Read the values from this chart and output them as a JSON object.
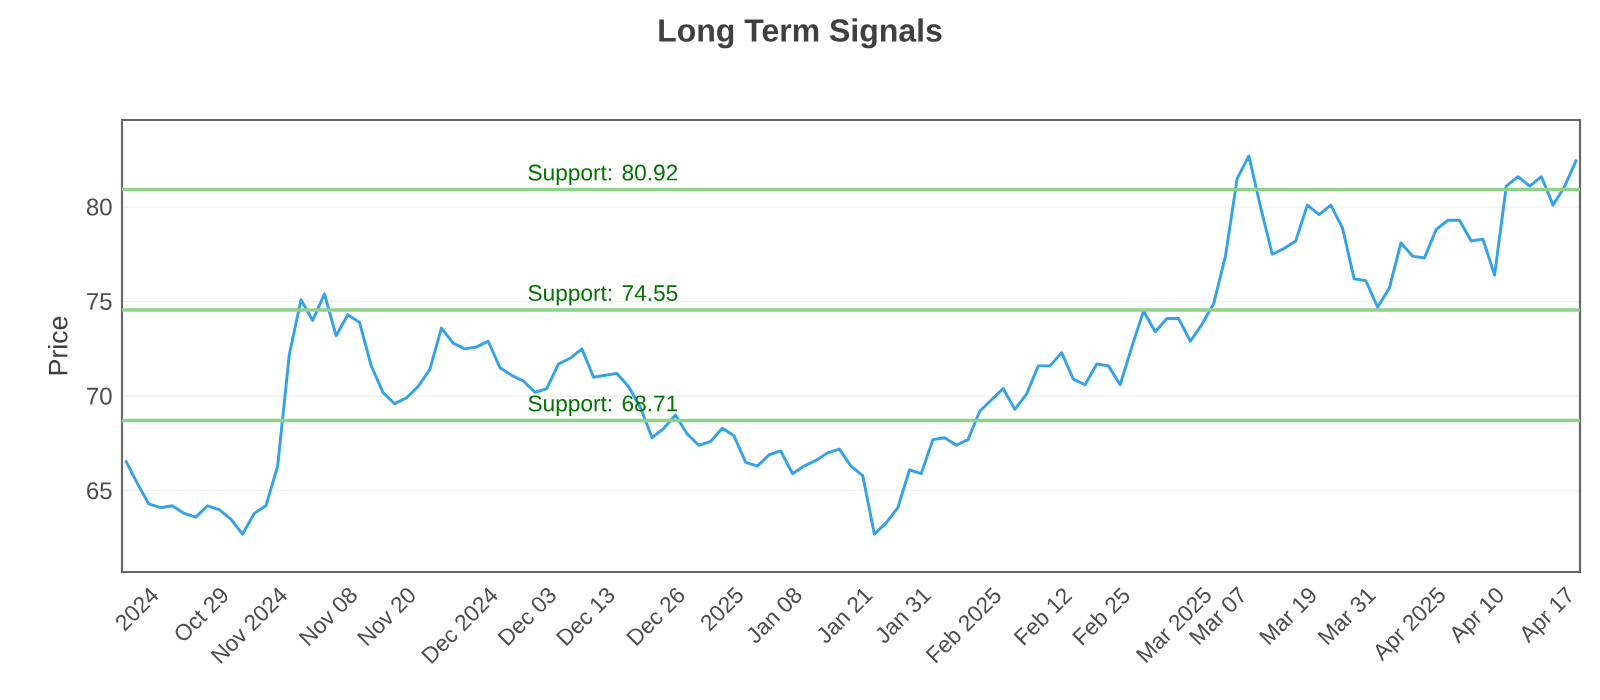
{
  "chart_data": {
    "type": "line",
    "title": "Long Term Signals",
    "ylabel": "Price",
    "categories": [
      null,
      null,
      "2024",
      null,
      null,
      null,
      null,
      null,
      "Oct 29",
      null,
      null,
      null,
      null,
      "Nov 2024",
      null,
      null,
      null,
      null,
      null,
      "Nov 08",
      null,
      null,
      null,
      null,
      "Nov 20",
      null,
      null,
      null,
      null,
      null,
      null,
      "Dec 2024",
      null,
      null,
      null,
      null,
      "Dec 03",
      null,
      null,
      null,
      null,
      "Dec 13",
      null,
      null,
      null,
      null,
      null,
      "Dec 26",
      null,
      null,
      null,
      null,
      "2025",
      null,
      null,
      null,
      null,
      "Jan 08",
      null,
      null,
      null,
      null,
      null,
      "Jan 21",
      null,
      null,
      null,
      null,
      "Jan 31",
      null,
      null,
      null,
      null,
      null,
      "Feb 2025",
      null,
      null,
      null,
      null,
      null,
      "Feb 12",
      null,
      null,
      null,
      null,
      "Feb 25",
      null,
      null,
      null,
      null,
      null,
      null,
      "Mar 2025",
      null,
      null,
      "Mar 07",
      null,
      null,
      null,
      null,
      null,
      "Mar 19",
      null,
      null,
      null,
      null,
      "Mar 31",
      null,
      null,
      null,
      null,
      null,
      "Apr 2025",
      null,
      null,
      null,
      null,
      "Apr 10",
      null,
      null,
      null,
      null,
      null,
      "Apr 17",
      null
    ],
    "series": [
      {
        "color": "#35a2e8",
        "values": [
          66.6,
          65.4,
          64.3,
          64.1,
          64.2,
          63.8,
          63.6,
          64.2,
          64.0,
          63.5,
          62.7,
          63.8,
          64.2,
          66.3,
          72.2,
          75.1,
          74.0,
          75.4,
          73.2,
          74.3,
          73.9,
          71.6,
          70.2,
          69.6,
          69.9,
          70.5,
          71.4,
          73.6,
          72.8,
          72.5,
          72.6,
          72.9,
          71.5,
          71.1,
          70.8,
          70.2,
          70.4,
          71.7,
          72.0,
          72.5,
          71.0,
          71.1,
          71.2,
          70.5,
          69.4,
          67.8,
          68.3,
          69.0,
          68.0,
          67.4,
          67.6,
          68.3,
          67.9,
          66.5,
          66.3,
          66.9,
          67.1,
          65.9,
          66.3,
          66.6,
          67.0,
          67.2,
          66.3,
          65.8,
          62.7,
          63.3,
          64.1,
          66.1,
          65.9,
          67.7,
          67.8,
          67.4,
          67.7,
          69.2,
          69.8,
          70.4,
          69.3,
          70.1,
          71.6,
          71.6,
          72.3,
          70.9,
          70.6,
          71.7,
          71.6,
          70.6,
          72.6,
          74.5,
          73.4,
          74.1,
          74.1,
          72.9,
          73.8,
          74.9,
          77.4,
          81.5,
          82.7,
          80.0,
          77.5,
          77.8,
          78.2,
          80.1,
          79.6,
          80.1,
          78.9,
          76.2,
          76.1,
          74.7,
          75.7,
          78.1,
          77.4,
          77.3,
          78.8,
          79.3,
          79.3,
          78.2,
          78.3,
          76.4,
          81.1,
          81.6,
          81.1,
          81.6,
          80.1,
          81.1,
          82.5
        ]
      }
    ],
    "ylim": [
      60.7,
      84.6
    ],
    "yticks": [
      65,
      70,
      75,
      80
    ],
    "grid": "y",
    "ref_lines": [
      {
        "axis": "y",
        "value": 80.92,
        "label": "Support: 80.92",
        "color": "#8fd08a"
      },
      {
        "axis": "y",
        "value": 74.55,
        "label": "Support: 74.55",
        "color": "#8fd08a"
      },
      {
        "axis": "y",
        "value": 68.71,
        "label": "Support: 68.71",
        "color": "#8fd08a"
      }
    ]
  }
}
